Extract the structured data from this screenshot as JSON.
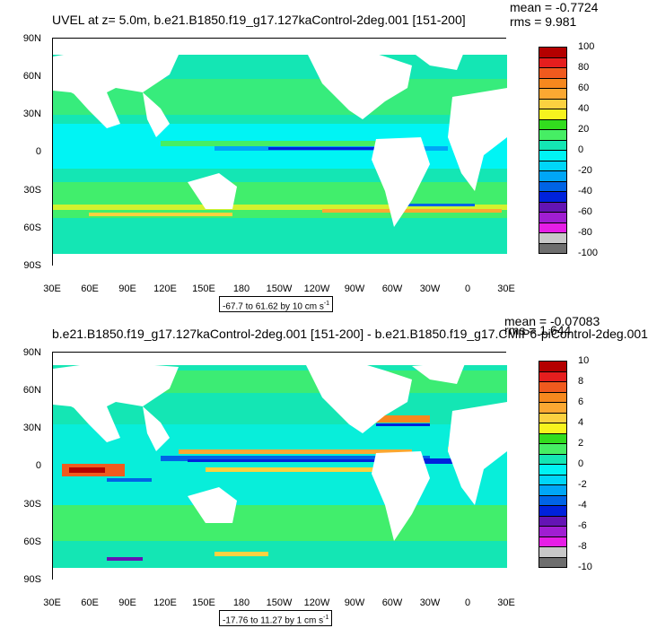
{
  "panels": [
    {
      "title": "UVEL at z=   5.0m, b.e21.B1850.f19_g17.127kaControl-2deg.001 [151-200]",
      "mean": "mean = -0.7724",
      "rms": "rms = 9.981",
      "lat_labels": [
        "90N",
        "60N",
        "30N",
        "0",
        "30S",
        "60S",
        "90S"
      ],
      "lon_labels": [
        "30E",
        "60E",
        "90E",
        "120E",
        "150E",
        "180",
        "150W",
        "120W",
        "90W",
        "60W",
        "30W",
        "0",
        "30E"
      ],
      "colorbar_labels": [
        "100",
        "80",
        "60",
        "40",
        "20",
        "0",
        "-20",
        "-40",
        "-60",
        "-80",
        "-100"
      ],
      "range_text": "-67.7 to 61.62 by 10 cm s",
      "range_unit_exp": "-1"
    },
    {
      "title": "b.e21.B1850.f19_g17.127kaControl-2deg.001 [151-200] - b.e21.B1850.f19_g17.CMIP6-piControl-2deg.001",
      "mean": "mean = -0.07083",
      "rms": "rms = 1.644",
      "lat_labels": [
        "90N",
        "60N",
        "30N",
        "0",
        "30S",
        "60S",
        "90S"
      ],
      "lon_labels": [
        "30E",
        "60E",
        "90E",
        "120E",
        "150E",
        "180",
        "150W",
        "120W",
        "90W",
        "60W",
        "30W",
        "0",
        "30E"
      ],
      "colorbar_labels": [
        "10",
        "8",
        "6",
        "4",
        "2",
        "0",
        "-2",
        "-4",
        "-6",
        "-8",
        "-10"
      ],
      "range_text": "-17.76 to 11.27 by 1 cm s",
      "range_unit_exp": "-1"
    }
  ],
  "colormap": [
    "#b40000",
    "#e61e1e",
    "#f05a1e",
    "#f6881e",
    "#fba832",
    "#fbd140",
    "#f7f31e",
    "#32dc1e",
    "#46ee64",
    "#14e6b4",
    "#00f4f4",
    "#00d6f8",
    "#00a6f6",
    "#0064e6",
    "#0022dc",
    "#6414b4",
    "#a01ed2",
    "#e61ee6",
    "#c8c8c8",
    "#6e6e6e"
  ],
  "colors": {
    "land": "#ffffff",
    "ocean_base": "#14e6b4",
    "frame": "#000000"
  }
}
